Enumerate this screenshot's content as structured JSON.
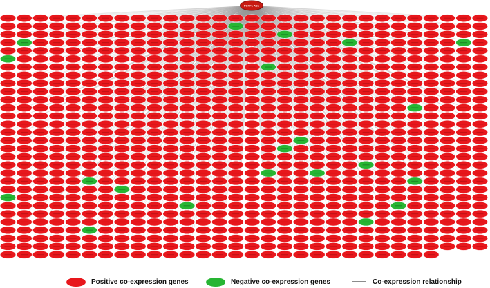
{
  "diagram": {
    "type": "co-expression-network",
    "hub": {
      "label": "FOXF1-AS1",
      "color": "#c81a12",
      "border": "#7a1010"
    },
    "grid": {
      "columns": 30,
      "rows": 30,
      "nodes_in_last_row": 27
    },
    "colors": {
      "positive": "#e8171c",
      "positive_label": "#b50f12",
      "negative": "#27b533",
      "edge": "#9a9a9a"
    },
    "negative_nodes": [
      [
        1,
        14
      ],
      [
        2,
        17
      ],
      [
        3,
        1
      ],
      [
        3,
        21
      ],
      [
        3,
        28
      ],
      [
        5,
        0
      ],
      [
        6,
        16
      ],
      [
        11,
        25
      ],
      [
        15,
        18
      ],
      [
        16,
        17
      ],
      [
        18,
        22
      ],
      [
        19,
        16
      ],
      [
        19,
        19
      ],
      [
        20,
        5
      ],
      [
        20,
        25
      ],
      [
        21,
        7
      ],
      [
        22,
        0
      ],
      [
        23,
        11
      ],
      [
        23,
        24
      ],
      [
        25,
        22
      ],
      [
        26,
        5
      ]
    ]
  },
  "legend": {
    "positive": {
      "label": "Positive co-expression genes",
      "color": "#e8171c"
    },
    "negative": {
      "label": "Negative co-expression genes",
      "color": "#27b533"
    },
    "edge": {
      "label": "Co-expression relationship",
      "color": "#8c8c8c"
    }
  }
}
